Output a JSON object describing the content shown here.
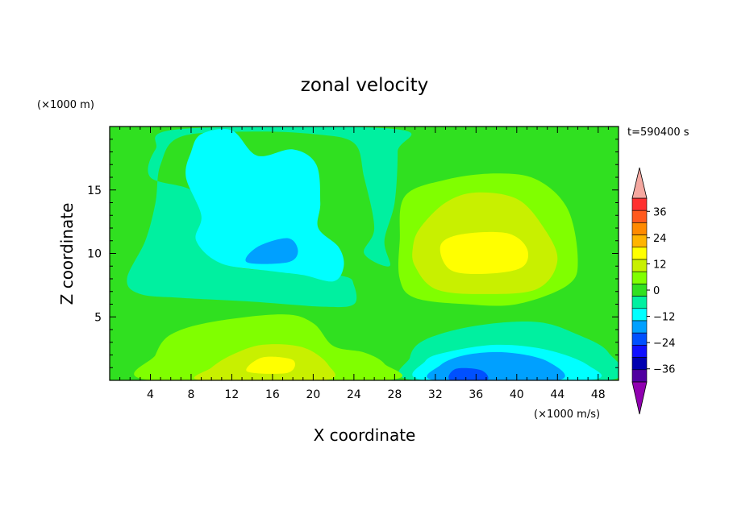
{
  "chart_data": {
    "type": "heatmap",
    "title": "zonal velocity",
    "xlabel": "X coordinate",
    "ylabel": "Z coordinate",
    "x_unit": "(×1000 m/s)",
    "y_unit": "(×1000 m)",
    "time_label": "t=590400 s",
    "xlim": [
      0,
      50
    ],
    "ylim": [
      0,
      20
    ],
    "x_ticks": [
      4,
      8,
      12,
      16,
      20,
      24,
      28,
      32,
      36,
      40,
      44,
      48
    ],
    "y_ticks": [
      5,
      10,
      15
    ],
    "colorbar": {
      "levels": [
        -42,
        -36,
        -30,
        -24,
        -18,
        -12,
        -6,
        0,
        6,
        12,
        18,
        24,
        30,
        36,
        42
      ],
      "labels": [
        36,
        24,
        12,
        0,
        -12,
        -24,
        -36
      ],
      "colors": [
        "#ff3030",
        "#ff5a1e",
        "#ff8a00",
        "#ffb400",
        "#ffff00",
        "#c8f000",
        "#80ff00",
        "#30e020",
        "#00f0a0",
        "#00ffff",
        "#00a0ff",
        "#0050ff",
        "#1010ff",
        "#0000b0",
        "#5000a0"
      ],
      "over_color": "#f5a8a0",
      "under_color": "#9000b0"
    },
    "regions": [
      {
        "v": 0,
        "points": [
          [
            0,
            0
          ],
          [
            50,
            0
          ],
          [
            50,
            20
          ],
          [
            0,
            20
          ]
        ]
      },
      {
        "v": -6,
        "points": [
          [
            4,
            16
          ],
          [
            8,
            15
          ],
          [
            10,
            13
          ],
          [
            9.5,
            11
          ],
          [
            12,
            9
          ],
          [
            18,
            8.6
          ],
          [
            23,
            8.2
          ],
          [
            24,
            7.5
          ],
          [
            24,
            6
          ],
          [
            21,
            5.8
          ],
          [
            14,
            6.2
          ],
          [
            7,
            6.5
          ],
          [
            3,
            6.8
          ],
          [
            1.7,
            8
          ],
          [
            3.5,
            11
          ],
          [
            4.5,
            14
          ],
          [
            5,
            17
          ],
          [
            7,
            19.2
          ],
          [
            14,
            19.6
          ],
          [
            20,
            19.4
          ],
          [
            24,
            18.7
          ],
          [
            25,
            16
          ],
          [
            26,
            12
          ],
          [
            25,
            10
          ],
          [
            27.5,
            9
          ],
          [
            27,
            11
          ],
          [
            28,
            14
          ],
          [
            28.3,
            18
          ],
          [
            28,
            19.8
          ],
          [
            7,
            19.8
          ],
          [
            4.5,
            18.2
          ]
        ]
      },
      {
        "v": -12,
        "points": [
          [
            7.5,
            16
          ],
          [
            9,
            13
          ],
          [
            8.5,
            11
          ],
          [
            11,
            9.2
          ],
          [
            16,
            8.6
          ],
          [
            19,
            8.3
          ],
          [
            22,
            7.8
          ],
          [
            23,
            9
          ],
          [
            22.5,
            10.5
          ],
          [
            20.5,
            12
          ],
          [
            20.7,
            14
          ],
          [
            20.3,
            17
          ],
          [
            18,
            18.2
          ],
          [
            14.5,
            17.7
          ],
          [
            12,
            19.7
          ],
          [
            9,
            19.4
          ],
          [
            8,
            18
          ]
        ]
      },
      {
        "v": -18,
        "points": [
          [
            13.5,
            9.3
          ],
          [
            14.5,
            10.5
          ],
          [
            17.5,
            11.2
          ],
          [
            18.5,
            10.2
          ],
          [
            17.5,
            9.3
          ]
        ]
      },
      {
        "v": -6,
        "points": [
          [
            30,
            0
          ],
          [
            49,
            0
          ],
          [
            49,
            2.2
          ],
          [
            46,
            3.6
          ],
          [
            42,
            4.6
          ],
          [
            36,
            4.3
          ],
          [
            31,
            3.2
          ],
          [
            29.5,
            1.8
          ]
        ]
      },
      {
        "v": -12,
        "points": [
          [
            31,
            0
          ],
          [
            47,
            0
          ],
          [
            47,
            1.2
          ],
          [
            43,
            2.4
          ],
          [
            38,
            2.8
          ],
          [
            33,
            2.2
          ],
          [
            31,
            1.5
          ]
        ]
      },
      {
        "v": -18,
        "points": [
          [
            32,
            0
          ],
          [
            44,
            0
          ],
          [
            43,
            1.5
          ],
          [
            39,
            2.2
          ],
          [
            35,
            2
          ],
          [
            32.5,
            1.2
          ]
        ]
      },
      {
        "v": -24,
        "points": [
          [
            33.5,
            0
          ],
          [
            37,
            0
          ],
          [
            36.5,
            0.8
          ],
          [
            34,
            0.9
          ]
        ]
      },
      {
        "v": 6,
        "points": [
          [
            29,
            14.5
          ],
          [
            33,
            15.8
          ],
          [
            38,
            16.3
          ],
          [
            42,
            15.8
          ],
          [
            45,
            13.5
          ],
          [
            46,
            9.5
          ],
          [
            45,
            7.5
          ],
          [
            40,
            6
          ],
          [
            35,
            6
          ],
          [
            30,
            6.5
          ],
          [
            28.5,
            8
          ],
          [
            28.5,
            11
          ]
        ]
      },
      {
        "v": 12,
        "points": [
          [
            30.5,
            12
          ],
          [
            33,
            14
          ],
          [
            36,
            14.8
          ],
          [
            40,
            14.3
          ],
          [
            42.5,
            12.2
          ],
          [
            44,
            9.5
          ],
          [
            42,
            7.2
          ],
          [
            36.5,
            6.8
          ],
          [
            32,
            7.2
          ],
          [
            30,
            9
          ],
          [
            29.8,
            10.5
          ]
        ]
      },
      {
        "v": 18,
        "points": [
          [
            32.5,
            10.6
          ],
          [
            34.5,
            11.5
          ],
          [
            39,
            11.6
          ],
          [
            41,
            10.4
          ],
          [
            40.5,
            8.9
          ],
          [
            37,
            8.4
          ],
          [
            33.5,
            8.7
          ]
        ]
      },
      {
        "v": 6,
        "points": [
          [
            4,
            0
          ],
          [
            27,
            0
          ],
          [
            27,
            1.3
          ],
          [
            25,
            2.2
          ],
          [
            22,
            2.7
          ],
          [
            20,
            4.5
          ],
          [
            17,
            5.2
          ],
          [
            10,
            4.6
          ],
          [
            6,
            3.6
          ],
          [
            4.5,
            2
          ]
        ]
      },
      {
        "v": 12,
        "points": [
          [
            9,
            0
          ],
          [
            21,
            0
          ],
          [
            21.5,
            1.2
          ],
          [
            19,
            2.6
          ],
          [
            15,
            2.8
          ],
          [
            12,
            2
          ],
          [
            10,
            1
          ]
        ]
      },
      {
        "v": 18,
        "points": [
          [
            13.5,
            0.7
          ],
          [
            15,
            1.8
          ],
          [
            18,
            1.6
          ],
          [
            17.5,
            0.6
          ]
        ]
      }
    ]
  }
}
